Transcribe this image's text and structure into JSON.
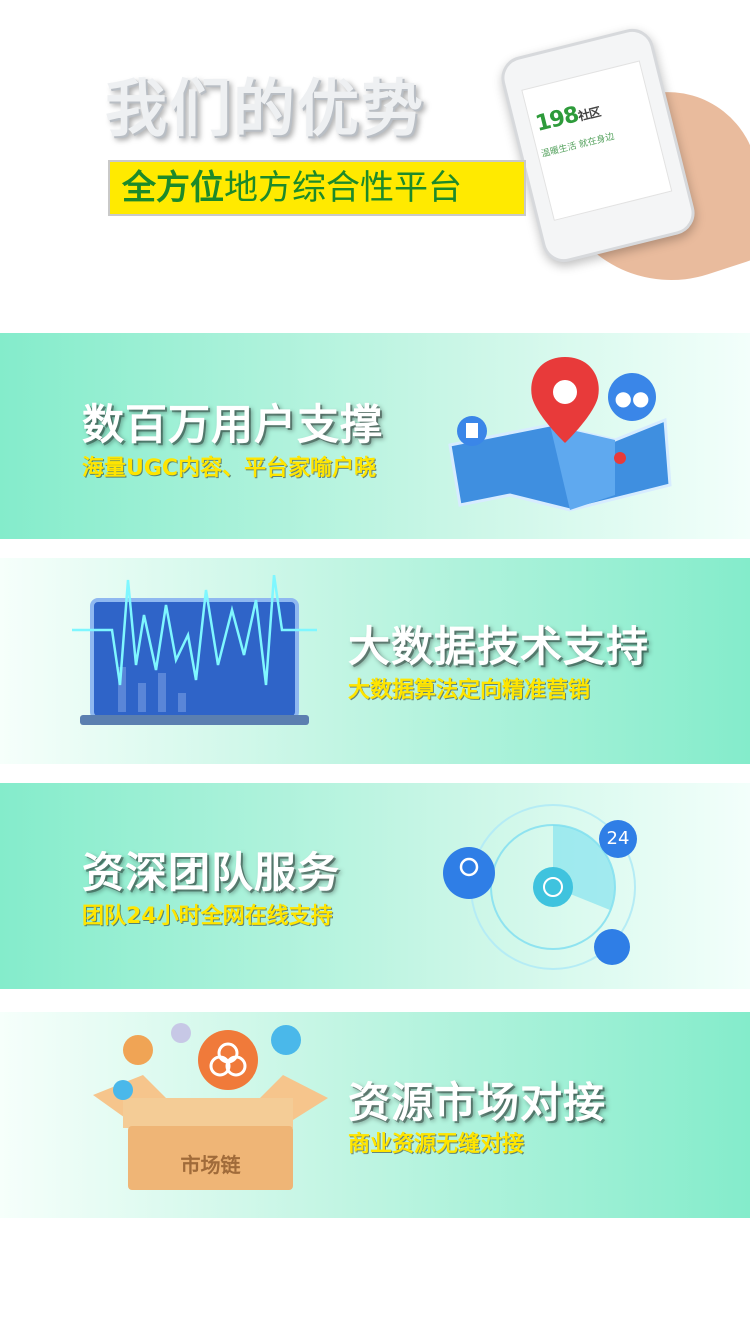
{
  "header": {
    "title": "我们的优势",
    "subtitle_bold": "全方位",
    "subtitle_rest": "地方综合性平台",
    "phone_logo": "198",
    "phone_logo_suffix": "社区",
    "phone_tagline": "温暖生活 就在身边"
  },
  "sections": [
    {
      "title": "数百万用户支撑",
      "subtitle": "海量UGC内容、平台家喻户晓"
    },
    {
      "title": "大数据技术支持",
      "subtitle": "大数据算法定向精准营销"
    },
    {
      "title": "资深团队服务",
      "subtitle": "团队24小时全网在线支持"
    },
    {
      "title": "资源市场对接",
      "subtitle": "商业资源无缝对接"
    }
  ],
  "badges": {
    "hours": "24",
    "market_box_label": "市场链"
  },
  "colors": {
    "band_green": "#84eccb",
    "accent_yellow": "#ffe500",
    "brand_green": "#2e9b3b",
    "icon_blue": "#3a86e8",
    "pin_red": "#e83a3a",
    "box_orange": "#f0a455"
  }
}
